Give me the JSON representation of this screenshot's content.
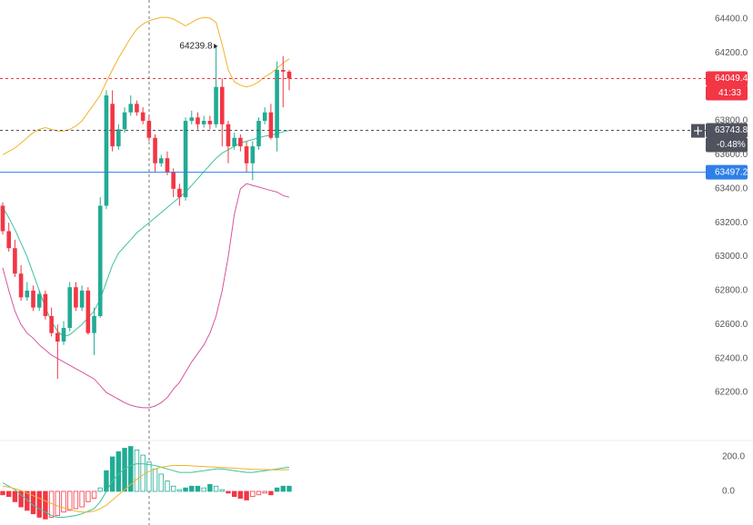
{
  "chart_data": {
    "type": "candlestick",
    "ylim": [
      61997,
      64512
    ],
    "yticks": [
      {
        "value": 62200,
        "label": "62200.0"
      },
      {
        "value": 62400,
        "label": "62400.0"
      },
      {
        "value": 62600,
        "label": "62600.0"
      },
      {
        "value": 62800,
        "label": "62800.0"
      },
      {
        "value": 63000,
        "label": "63000.0"
      },
      {
        "value": 63200,
        "label": "63200.0"
      },
      {
        "value": 63400,
        "label": "63400.0"
      },
      {
        "value": 63600,
        "label": "63600.0"
      },
      {
        "value": 63800,
        "label": "63800.0"
      },
      {
        "value": 64000,
        "label": "64000.0"
      },
      {
        "value": 64200,
        "label": "64200.0"
      },
      {
        "value": 64400,
        "label": "64400.0"
      }
    ],
    "up_color": "#22ab94",
    "down_color": "#f23645",
    "open": [
      63300,
      63150,
      63050,
      62900,
      62760,
      62800,
      62700,
      62780,
      62650,
      62550,
      62500,
      62580,
      62820,
      62700,
      62800,
      62550,
      62650,
      63300,
      63900,
      63650,
      63750,
      63850,
      63900,
      63850,
      63800,
      63700,
      63550,
      63580,
      63500,
      63400,
      63350,
      63800,
      63820,
      63780,
      63800,
      63780,
      64000,
      63780,
      63650,
      63700,
      63650,
      63550,
      63650,
      63800,
      63850,
      63700,
      64100,
      64090
    ],
    "high": [
      63320,
      63200,
      63100,
      62950,
      62850,
      62830,
      62800,
      62800,
      62700,
      62600,
      62620,
      62850,
      62850,
      62830,
      62820,
      62700,
      63350,
      63980,
      63980,
      63780,
      63880,
      63950,
      63920,
      63880,
      63830,
      63720,
      63600,
      63620,
      63520,
      63430,
      63820,
      63860,
      63850,
      63830,
      63830,
      64239.8,
      64050,
      63800,
      63730,
      63720,
      63680,
      63680,
      63820,
      63880,
      63900,
      64150,
      64180,
      64100
    ],
    "low": [
      63130,
      63030,
      62880,
      62740,
      62740,
      62680,
      62680,
      62630,
      62530,
      62280,
      62480,
      62560,
      62680,
      62680,
      62540,
      62420,
      62640,
      63280,
      63620,
      63630,
      63730,
      63830,
      63830,
      63780,
      63680,
      63500,
      63530,
      63480,
      63350,
      63300,
      63330,
      63780,
      63750,
      63760,
      63750,
      63760,
      63650,
      63550,
      63630,
      63620,
      63500,
      63450,
      63630,
      63780,
      63690,
      63620,
      63880,
      63980
    ],
    "close": [
      63150,
      63050,
      62900,
      62760,
      62800,
      62700,
      62780,
      62650,
      62550,
      62500,
      62580,
      62820,
      62700,
      62800,
      62550,
      62650,
      63300,
      63950,
      63650,
      63750,
      63850,
      63900,
      63850,
      63800,
      63700,
      63550,
      63580,
      63500,
      63400,
      63350,
      63800,
      63820,
      63780,
      63800,
      63780,
      64000,
      63780,
      63650,
      63700,
      63650,
      63550,
      63650,
      63800,
      63850,
      63700,
      64100,
      64090,
      64049.4
    ],
    "bollinger": {
      "upper": [
        63600,
        63620,
        63640,
        63670,
        63700,
        63730,
        63750,
        63760,
        63750,
        63740,
        63740,
        63750,
        63770,
        63800,
        63850,
        63900,
        63950,
        64030,
        64100,
        64170,
        64230,
        64290,
        64340,
        64370,
        64390,
        64400,
        64410,
        64410,
        64400,
        64380,
        64360,
        64380,
        64400,
        64410,
        64405,
        64380,
        64250,
        64100,
        64030,
        64010,
        64000,
        64010,
        64030,
        64060,
        64080,
        64110,
        64140,
        64165
      ],
      "basis": [
        63290,
        63230,
        63160,
        63080,
        63000,
        62900,
        62800,
        62700,
        62620,
        62560,
        62530,
        62540,
        62570,
        62600,
        62640,
        62680,
        62750,
        62850,
        62950,
        63020,
        63060,
        63100,
        63140,
        63170,
        63200,
        63230,
        63260,
        63290,
        63320,
        63350,
        63380,
        63420,
        63460,
        63500,
        63540,
        63580,
        63610,
        63630,
        63650,
        63670,
        63680,
        63690,
        63700,
        63710,
        63715,
        63725,
        63735,
        63743.8
      ],
      "lower": [
        62935,
        62800,
        62680,
        62600,
        62550,
        62520,
        62480,
        62450,
        62420,
        62400,
        62380,
        62360,
        62340,
        62320,
        62300,
        62280,
        62240,
        62200,
        62180,
        62160,
        62140,
        62125,
        62115,
        62110,
        62110,
        62120,
        62140,
        62170,
        62220,
        62260,
        62320,
        62380,
        62430,
        62480,
        62550,
        62650,
        62800,
        63000,
        63250,
        63400,
        63430,
        63420,
        63410,
        63400,
        63390,
        63380,
        63360,
        63350
      ],
      "colors": {
        "upper": "#f2b22a",
        "basis": "#3cc29c",
        "lower": "#d6559f"
      }
    },
    "price_lines": [
      {
        "value": 64049.4,
        "timer": "41:33",
        "color": "#f23645",
        "style": "dashed"
      },
      {
        "value": 63743.8,
        "change": "-0.48%",
        "color": "#50535e",
        "style": "dashed"
      },
      {
        "value": 63497.2,
        "color": "#2f7fe8",
        "style": "solid"
      }
    ],
    "macd": {
      "ylim": [
        -195,
        321
      ],
      "yticks": [
        {
          "value": 0,
          "label": "0.0"
        },
        {
          "value": 200,
          "label": "200.0"
        }
      ],
      "histogram": [
        -20,
        -30,
        -60,
        -90,
        -110,
        -130,
        -150,
        -160,
        -150,
        -140,
        -120,
        -110,
        -100,
        -90,
        -60,
        -40,
        20,
        120,
        200,
        230,
        250,
        260,
        240,
        210,
        170,
        130,
        100,
        60,
        30,
        10,
        20,
        30,
        30,
        20,
        40,
        30,
        10,
        -10,
        -30,
        -40,
        -50,
        -30,
        -20,
        -10,
        -20,
        20,
        30,
        30
      ],
      "macd": [
        50,
        30,
        10,
        -20,
        -50,
        -80,
        -100,
        -120,
        -140,
        -150,
        -150,
        -145,
        -140,
        -130,
        -115,
        -100,
        -60,
        0,
        60,
        100,
        130,
        150,
        160,
        160,
        155,
        150,
        140,
        130,
        120,
        110,
        110,
        110,
        115,
        120,
        125,
        130,
        130,
        125,
        120,
        115,
        110,
        110,
        115,
        120,
        125,
        130,
        135,
        140
      ],
      "signal": [
        30,
        25,
        15,
        5,
        -10,
        -25,
        -40,
        -55,
        -70,
        -85,
        -95,
        -105,
        -115,
        -120,
        -120,
        -115,
        -100,
        -80,
        -50,
        -20,
        10,
        40,
        70,
        95,
        115,
        130,
        140,
        145,
        150,
        150,
        150,
        148,
        146,
        144,
        142,
        140,
        138,
        136,
        134,
        132,
        130,
        128,
        127,
        126,
        125,
        125,
        125,
        126
      ],
      "colors": {
        "macd": "#3cc29c",
        "signal": "#f2b22a",
        "up": "#22ab94",
        "down": "#f23645"
      }
    }
  }
}
